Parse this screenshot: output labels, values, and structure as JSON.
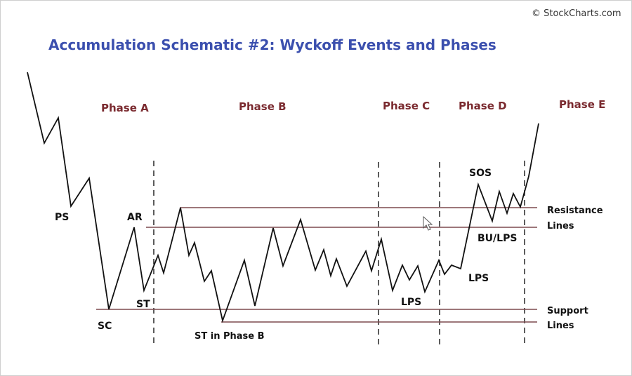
{
  "watermark": "© StockCharts.com",
  "title": "Accumulation Schematic #2: Wyckoff Events and Phases",
  "phases": [
    "Phase A",
    "Phase B",
    "Phase C",
    "Phase D",
    "Phase E"
  ],
  "events": {
    "ps": "PS",
    "sc": "SC",
    "ar": "AR",
    "st": "ST",
    "st_phase_b": "ST in Phase B",
    "lps_c": "LPS",
    "lps_d": "LPS",
    "sos": "SOS",
    "bu_lps": "BU/LPS"
  },
  "side_labels": {
    "resistance_1": "Resistance",
    "resistance_2": "Lines",
    "support_1": "Support",
    "support_2": "Lines"
  },
  "colors": {
    "title": "#3b4fae",
    "phase_label": "#7a2a2f",
    "level_line": "#7d4a4f",
    "price_line": "#111111"
  }
}
